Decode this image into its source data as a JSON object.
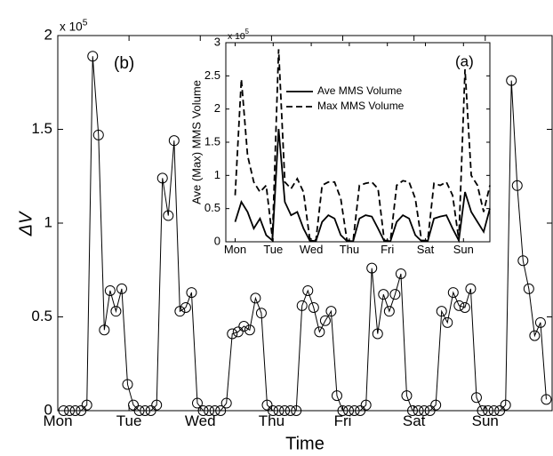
{
  "chart_data": [
    {
      "type": "line",
      "marker": "circle",
      "color": "#000000",
      "y_label": "ΔV",
      "x_label": "Time",
      "annotation": "(b)",
      "y_multiplier": {
        "base": "x 10",
        "exponent": "5"
      },
      "x": [
        1,
        2,
        3,
        4,
        5,
        6,
        7,
        8,
        9,
        10,
        11,
        12,
        13,
        14,
        15,
        16,
        17,
        18,
        19,
        20,
        21,
        22,
        23,
        24,
        25,
        26,
        27,
        28,
        29,
        30,
        31,
        32,
        33,
        34,
        35,
        36,
        37,
        38,
        39,
        40,
        41,
        42,
        43,
        44,
        45,
        46,
        47,
        48,
        49,
        50,
        51,
        52,
        53,
        54,
        55,
        56,
        57,
        58,
        59,
        60,
        61,
        62,
        63,
        64,
        65,
        66,
        67,
        68,
        69,
        70,
        71,
        72,
        73,
        74,
        75,
        76,
        77,
        78,
        79,
        80,
        81,
        82,
        83,
        84
      ],
      "values": [
        0,
        0,
        0,
        0,
        0.03,
        1.89,
        1.47,
        0.43,
        0.64,
        0.53,
        0.65,
        0.14,
        0.03,
        0,
        0,
        0,
        0.03,
        1.24,
        1.04,
        1.44,
        0.53,
        0.55,
        0.63,
        0.04,
        0,
        0,
        0,
        0,
        0.04,
        0.41,
        0.42,
        0.45,
        0.43,
        0.6,
        0.52,
        0.03,
        0,
        0,
        0,
        0,
        0,
        0.56,
        0.64,
        0.55,
        0.42,
        0.48,
        0.53,
        0.08,
        0,
        0,
        0,
        0,
        0.03,
        0.76,
        0.41,
        0.62,
        0.53,
        0.62,
        0.73,
        0.08,
        0,
        0,
        0,
        0,
        0.03,
        0.53,
        0.47,
        0.63,
        0.56,
        0.55,
        0.65,
        0.07,
        0,
        0,
        0,
        0,
        0.03,
        1.76,
        1.2,
        0.8,
        0.65,
        0.4,
        0.47,
        0.06
      ],
      "xlim": [
        0,
        85
      ],
      "xticks": [
        {
          "value": 0,
          "label": "Mon"
        },
        {
          "value": 12.25,
          "label": "Tue"
        },
        {
          "value": 24.5,
          "label": "Wed"
        },
        {
          "value": 36.75,
          "label": "Thu"
        },
        {
          "value": 49,
          "label": "Fri"
        },
        {
          "value": 61.25,
          "label": "Sat"
        },
        {
          "value": 73.5,
          "label": "Sun"
        }
      ],
      "ylim": [
        0,
        2
      ],
      "yticks": [
        0,
        0.5,
        1,
        1.5,
        2
      ]
    },
    {
      "type": "line",
      "y_label": "Ave (Max) MMS Volume",
      "annotation": "(a)",
      "y_multiplier": {
        "base": "x 10",
        "exponent": "5"
      },
      "x": [
        0,
        2,
        4,
        6,
        8,
        10,
        12,
        14,
        16,
        18,
        20,
        22,
        24,
        26,
        28,
        30,
        32,
        34,
        36,
        38,
        40,
        42,
        44,
        46,
        48,
        50,
        52,
        54,
        56,
        58,
        60,
        62,
        64,
        66,
        68,
        70,
        72,
        74,
        76,
        78,
        80,
        82
      ],
      "series": [
        {
          "name": "Ave MMS Volume",
          "color": "#000000",
          "dash": "solid",
          "values": [
            0.3,
            0.6,
            0.45,
            0.2,
            0.35,
            0.1,
            0.02,
            1.7,
            0.6,
            0.4,
            0.45,
            0.2,
            0.02,
            0.01,
            0.3,
            0.4,
            0.35,
            0.1,
            0.01,
            0.01,
            0.35,
            0.4,
            0.38,
            0.2,
            0.01,
            0.01,
            0.3,
            0.4,
            0.35,
            0.1,
            0.01,
            0.01,
            0.35,
            0.38,
            0.4,
            0.2,
            0.02,
            0.75,
            0.45,
            0.3,
            0.15,
            0.5
          ]
        },
        {
          "name": "Max MMS Volume",
          "color": "#000000",
          "dash": "dashed",
          "values": [
            0.7,
            2.45,
            1.3,
            0.9,
            0.75,
            0.85,
            0.05,
            2.9,
            0.9,
            0.8,
            0.95,
            0.75,
            0.05,
            0.02,
            0.85,
            0.9,
            0.9,
            0.65,
            0.02,
            0.02,
            0.85,
            0.88,
            0.9,
            0.8,
            0.02,
            0.02,
            0.85,
            0.92,
            0.9,
            0.65,
            0.02,
            0.02,
            0.88,
            0.85,
            0.9,
            0.7,
            0.03,
            2.6,
            1.0,
            0.85,
            0.45,
            0.85
          ]
        }
      ],
      "xlim": [
        -3,
        82
      ],
      "xticks": [
        {
          "value": 0,
          "label": "Mon"
        },
        {
          "value": 12.25,
          "label": "Tue"
        },
        {
          "value": 24.5,
          "label": "Wed"
        },
        {
          "value": 36.75,
          "label": "Thu"
        },
        {
          "value": 49,
          "label": "Fri"
        },
        {
          "value": 61.25,
          "label": "Sat"
        },
        {
          "value": 73.5,
          "label": "Sun"
        }
      ],
      "ylim": [
        0,
        3
      ],
      "yticks": [
        0,
        0.5,
        1,
        1.5,
        2,
        2.5,
        3
      ]
    }
  ]
}
